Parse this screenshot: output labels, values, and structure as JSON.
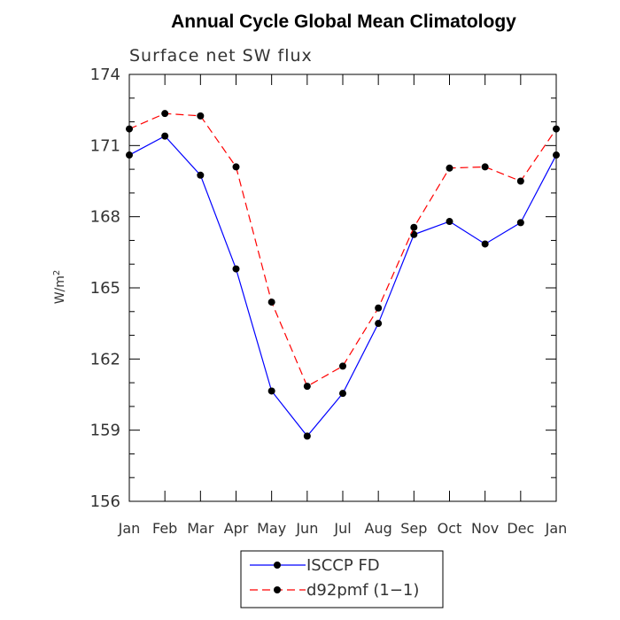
{
  "chart_data": {
    "type": "line",
    "title": "Annual Cycle Global Mean Climatology",
    "subtitle": "Surface net SW flux",
    "ylabel": "W/m",
    "ylabel_superscript": "2",
    "xlabel": "",
    "categories": [
      "Jan",
      "Feb",
      "Mar",
      "Apr",
      "May",
      "Jun",
      "Jul",
      "Aug",
      "Sep",
      "Oct",
      "Nov",
      "Dec",
      "Jan"
    ],
    "yticks": [
      156,
      159,
      162,
      165,
      168,
      171,
      174
    ],
    "ylim": [
      156,
      174
    ],
    "grid": false,
    "legend_position": "bottom",
    "series": [
      {
        "name": "ISCCP FD",
        "color": "#0000ff",
        "dash": "solid",
        "values": [
          170.6,
          171.4,
          169.75,
          165.8,
          160.65,
          158.75,
          160.55,
          163.5,
          167.25,
          167.8,
          166.85,
          167.75,
          170.6
        ]
      },
      {
        "name": "d92pmf (1−1)",
        "color": "#ff0000",
        "dash": "dashed",
        "values": [
          171.7,
          172.35,
          172.25,
          170.1,
          164.4,
          160.85,
          161.7,
          164.15,
          167.55,
          170.05,
          170.1,
          169.5,
          171.7
        ]
      }
    ]
  }
}
